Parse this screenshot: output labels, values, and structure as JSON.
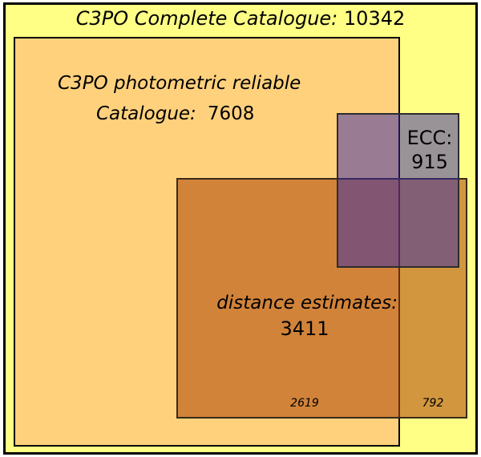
{
  "sets": {
    "complete": {
      "label": "C3PO Complete Catalogue:",
      "count": "10342"
    },
    "photometric": {
      "label_line1": "C3PO photometric reliable",
      "label_line2": "Catalogue:",
      "count": "7608"
    },
    "ecc": {
      "label": "ECC:",
      "count": "915"
    },
    "distance": {
      "label": "distance estimates:",
      "count": "3411",
      "subcount_inside_photometric": "2619",
      "subcount_outside_photometric": "792"
    }
  },
  "colors": {
    "complete_fill": "#ffff85",
    "photometric_fill": "#ffd17d",
    "distance_fill": "#b04a0a",
    "ecc_fill": "#3428aa"
  }
}
